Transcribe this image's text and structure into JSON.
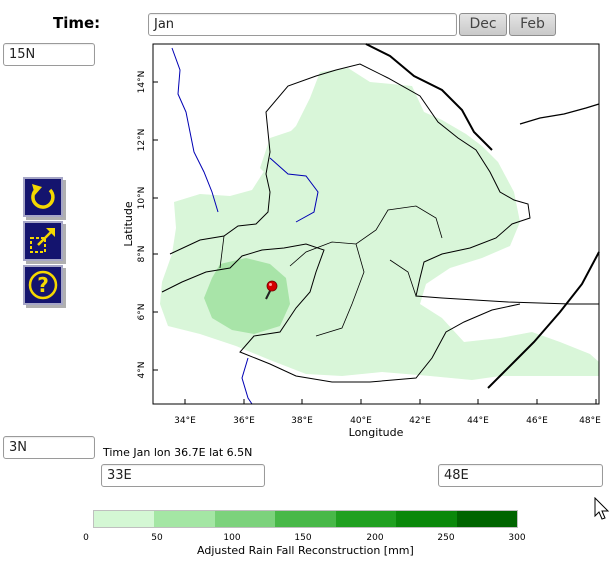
{
  "time": {
    "label": "Time:",
    "value": "Jan",
    "prev_button": "Dec",
    "next_button": "Feb"
  },
  "bounds": {
    "north": "15N",
    "south": "3N",
    "west": "33E",
    "east": "48E"
  },
  "tools": {
    "icons": [
      "refresh-icon",
      "expand-icon",
      "help-icon"
    ]
  },
  "map": {
    "ylabel": "Latitude",
    "xlabel": "Longitude",
    "x_ticks": [
      "34°E",
      "36°E",
      "38°E",
      "40°E",
      "42°E",
      "44°E",
      "46°E",
      "48°E"
    ],
    "y_ticks": [
      "4°N",
      "6°N",
      "8°N",
      "10°N",
      "12°N",
      "14°N"
    ],
    "marker": {
      "lon": 36.7,
      "lat": 6.5
    }
  },
  "status": "Time Jan lon 36.7E lat 6.5N",
  "colorbar": {
    "title": "Adjusted Rain Fall Reconstruction [mm]",
    "ticks": [
      "0",
      "50",
      "100",
      "150",
      "200",
      "250",
      "300"
    ],
    "colors": [
      "#d4f7d4",
      "#a4e6a4",
      "#7cd27c",
      "#48b848",
      "#20a020",
      "#0a880a",
      "#006400"
    ]
  }
}
